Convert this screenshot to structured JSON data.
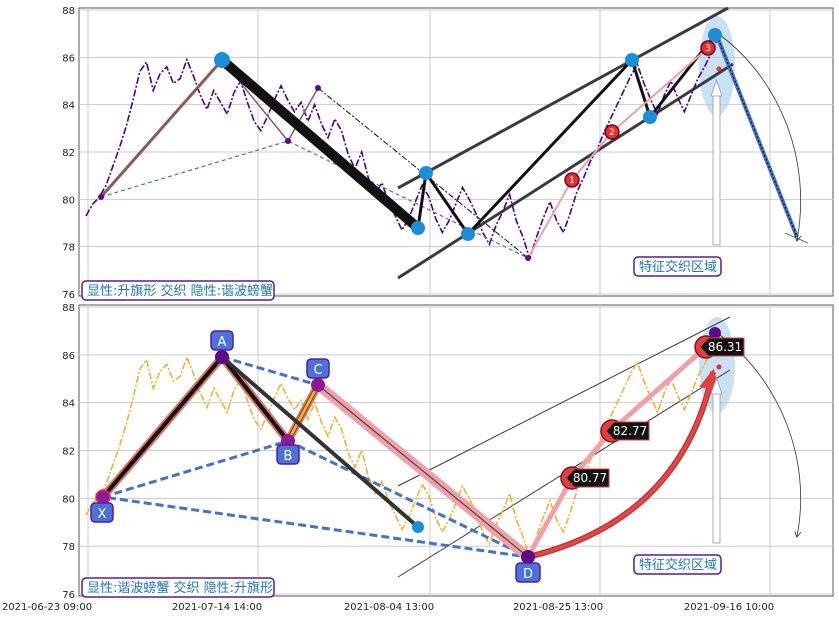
{
  "chart_data": [
    {
      "type": "line",
      "panel": "top",
      "ylim": [
        76,
        88
      ],
      "yticks": [
        76,
        78,
        80,
        82,
        84,
        86,
        88
      ],
      "x": [
        "2021-06-23 09:00",
        "2021-07-14 14:00",
        "2021-08-04 13:00",
        "2021-08-25 13:00",
        "2021-09-16 10:00"
      ],
      "grid": true,
      "price_series": {
        "color": "#4b0082",
        "style": "dashdot",
        "values": [
          79.3,
          79.8,
          80.1,
          80.6,
          81.4,
          82.2,
          83.1,
          84.2,
          85.4,
          85.8,
          84.6,
          85.3,
          85.6,
          84.9,
          85.1,
          85.9,
          85.2,
          84.4,
          83.8,
          84.6,
          84.1,
          83.6,
          84.5,
          85.0,
          84.1,
          83.3,
          82.9,
          83.5,
          84.2,
          84.8,
          84.2,
          83.7,
          84.1,
          83.3,
          84.0,
          83.2,
          82.6,
          83.4,
          82.9,
          81.9,
          81.3,
          82.0,
          80.9,
          80.2,
          80.7,
          79.9,
          79.3,
          78.7,
          79.2,
          79.9,
          80.6,
          80.1,
          79.2,
          78.6,
          79.1,
          79.8,
          80.5,
          80.0,
          79.4,
          78.6,
          78.1,
          78.9,
          79.5,
          80.2,
          79.1,
          78.4,
          77.5,
          78.4,
          79.2,
          79.9,
          79.1,
          78.6,
          79.4,
          80.3,
          80.9,
          81.6,
          82.1,
          82.8,
          83.4,
          84.0,
          84.6,
          85.2,
          85.7,
          84.9,
          84.2,
          83.6,
          84.4,
          85.0,
          84.3,
          83.7,
          84.4,
          85.1,
          85.6,
          86.2,
          86.8
        ]
      },
      "pattern_points": [
        {
          "name": "1",
          "value": 80.77
        },
        {
          "name": "2",
          "value": 82.77
        },
        {
          "name": "3",
          "value": 86.31
        }
      ],
      "label_left": "显性:升旗形 交织 隐性:谐波螃蟹",
      "label_right": "特征交织区域"
    },
    {
      "type": "line",
      "panel": "bottom",
      "ylim": [
        76,
        88
      ],
      "yticks": [
        76,
        78,
        80,
        82,
        84,
        86,
        88
      ],
      "x": [
        "2021-06-23 09:00",
        "2021-07-14 14:00",
        "2021-08-04 13:00",
        "2021-08-25 13:00",
        "2021-09-16 10:00"
      ],
      "grid": true,
      "price_series": {
        "color": "#f0b030",
        "style": "dashdot",
        "values": [
          79.3,
          79.8,
          80.1,
          80.6,
          81.4,
          82.2,
          83.1,
          84.2,
          85.4,
          85.8,
          84.6,
          85.3,
          85.6,
          84.9,
          85.1,
          85.9,
          85.2,
          84.4,
          83.8,
          84.6,
          84.1,
          83.6,
          84.5,
          85.0,
          84.1,
          83.3,
          82.9,
          83.5,
          84.2,
          84.8,
          84.2,
          83.7,
          84.1,
          83.3,
          84.0,
          83.2,
          82.6,
          83.4,
          82.9,
          81.9,
          81.3,
          82.0,
          80.9,
          80.2,
          80.7,
          79.9,
          79.3,
          78.7,
          79.2,
          79.9,
          80.6,
          80.1,
          79.2,
          78.6,
          79.1,
          79.8,
          80.5,
          80.0,
          79.4,
          78.6,
          78.1,
          78.9,
          79.5,
          80.2,
          79.1,
          78.4,
          77.5,
          78.4,
          79.2,
          79.9,
          79.1,
          78.6,
          79.4,
          80.3,
          80.9,
          81.6,
          82.1,
          82.8,
          83.4,
          84.0,
          84.6,
          85.2,
          85.7,
          84.9,
          84.2,
          83.6,
          84.4,
          85.0,
          84.3,
          83.7,
          84.4,
          85.1,
          85.6,
          86.2,
          86.8
        ]
      },
      "xabcd_points": [
        {
          "name": "X",
          "value": 80.0
        },
        {
          "name": "A",
          "value": 85.9
        },
        {
          "name": "B",
          "value": 82.4
        },
        {
          "name": "C",
          "value": 84.8
        },
        {
          "name": "D",
          "value": 77.4
        }
      ],
      "value_labels": [
        "80.77",
        "82.77",
        "86.31"
      ],
      "label_left": "显性:谐波螃蟹 交织 隐性:升旗形",
      "label_right": "特征交织区域"
    }
  ],
  "colors": {
    "grid": "#cccccc",
    "frame": "#555555",
    "trendline": "#3a3a45",
    "blue_node": "#1a8fd8",
    "purple_node": "#5a0a8a",
    "red_node": "#e03030",
    "label_border": "#5a1a9a",
    "point_box": "#4a72d8"
  }
}
